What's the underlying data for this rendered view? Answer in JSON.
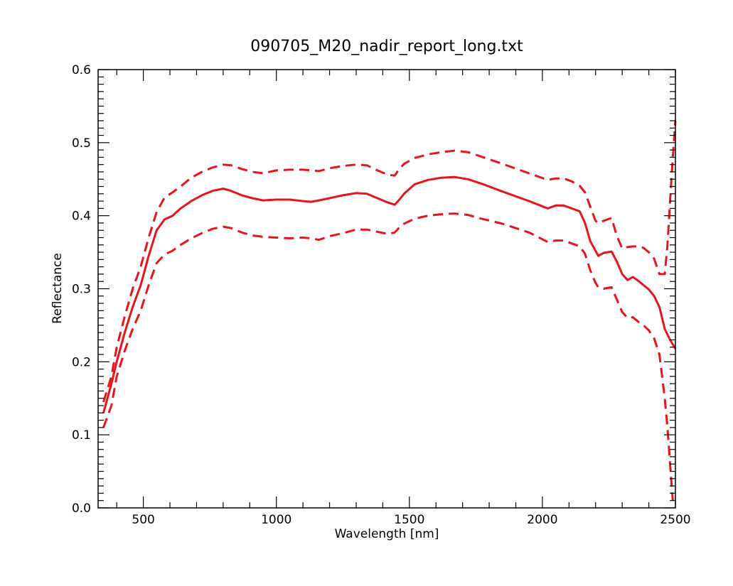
{
  "chart_data": {
    "type": "line",
    "title": "090705_M20_nadir_report_long.txt",
    "xlabel": "Wavelength [nm]",
    "ylabel": "Reflectance",
    "xlim": [
      330,
      2500
    ],
    "ylim": [
      0.0,
      0.6
    ],
    "x_ticks": [
      500,
      1000,
      1500,
      2000,
      2500
    ],
    "x_tick_labels": [
      "500",
      "1000",
      "1500",
      "2000",
      "2500"
    ],
    "y_ticks": [
      0.0,
      0.1,
      0.2,
      0.3,
      0.4,
      0.5,
      0.6
    ],
    "y_tick_labels": [
      "0.0",
      "0.1",
      "0.2",
      "0.3",
      "0.4",
      "0.5",
      "0.6"
    ],
    "grid": false,
    "colors": {
      "series": "#e8141c",
      "axes": "#000000"
    },
    "series": [
      {
        "style": "solid",
        "x": [
          350,
          380,
          400,
          430,
          460,
          490,
          520,
          550,
          580,
          610,
          640,
          680,
          720,
          760,
          800,
          830,
          870,
          910,
          950,
          1000,
          1050,
          1100,
          1130,
          1160,
          1200,
          1250,
          1300,
          1340,
          1380,
          1420,
          1445,
          1460,
          1480,
          1520,
          1570,
          1620,
          1670,
          1720,
          1770,
          1850,
          1950,
          2020,
          2050,
          2080,
          2110,
          2140,
          2160,
          2180,
          2200,
          2210,
          2230,
          2260,
          2280,
          2300,
          2320,
          2340,
          2360,
          2380,
          2400,
          2420,
          2440,
          2460,
          2480,
          2500
        ],
        "y": [
          0.13,
          0.17,
          0.2,
          0.24,
          0.275,
          0.305,
          0.345,
          0.38,
          0.395,
          0.4,
          0.41,
          0.42,
          0.428,
          0.434,
          0.437,
          0.434,
          0.428,
          0.424,
          0.421,
          0.422,
          0.422,
          0.42,
          0.419,
          0.421,
          0.424,
          0.428,
          0.431,
          0.43,
          0.424,
          0.418,
          0.415,
          0.421,
          0.43,
          0.443,
          0.449,
          0.452,
          0.453,
          0.45,
          0.444,
          0.433,
          0.42,
          0.41,
          0.414,
          0.414,
          0.41,
          0.406,
          0.39,
          0.365,
          0.352,
          0.345,
          0.349,
          0.351,
          0.337,
          0.32,
          0.312,
          0.316,
          0.311,
          0.305,
          0.299,
          0.29,
          0.275,
          0.245,
          0.23,
          0.218
        ]
      },
      {
        "style": "dashed",
        "x": [
          350,
          380,
          400,
          430,
          460,
          490,
          520,
          550,
          580,
          610,
          640,
          680,
          720,
          760,
          800,
          830,
          870,
          910,
          950,
          1000,
          1050,
          1100,
          1130,
          1160,
          1200,
          1250,
          1300,
          1340,
          1380,
          1420,
          1445,
          1460,
          1480,
          1520,
          1570,
          1620,
          1670,
          1720,
          1770,
          1850,
          1950,
          2020,
          2050,
          2080,
          2110,
          2140,
          2160,
          2180,
          2200,
          2210,
          2230,
          2260,
          2280,
          2300,
          2320,
          2340,
          2360,
          2380,
          2400,
          2420,
          2440,
          2460,
          2470,
          2480,
          2490,
          2500
        ],
        "y": [
          0.145,
          0.18,
          0.22,
          0.262,
          0.3,
          0.33,
          0.37,
          0.405,
          0.425,
          0.432,
          0.44,
          0.452,
          0.46,
          0.466,
          0.47,
          0.469,
          0.464,
          0.46,
          0.458,
          0.462,
          0.463,
          0.463,
          0.462,
          0.461,
          0.465,
          0.468,
          0.47,
          0.469,
          0.462,
          0.456,
          0.455,
          0.463,
          0.471,
          0.479,
          0.484,
          0.487,
          0.489,
          0.487,
          0.481,
          0.471,
          0.458,
          0.449,
          0.451,
          0.451,
          0.447,
          0.441,
          0.432,
          0.412,
          0.393,
          0.39,
          0.393,
          0.397,
          0.372,
          0.355,
          0.357,
          0.358,
          0.358,
          0.356,
          0.35,
          0.341,
          0.32,
          0.32,
          0.36,
          0.42,
          0.48,
          0.53
        ]
      },
      {
        "style": "dashed",
        "x": [
          350,
          380,
          400,
          430,
          460,
          490,
          520,
          550,
          580,
          610,
          640,
          680,
          720,
          760,
          800,
          830,
          870,
          910,
          950,
          1000,
          1050,
          1100,
          1130,
          1160,
          1200,
          1250,
          1300,
          1340,
          1380,
          1420,
          1445,
          1460,
          1480,
          1520,
          1570,
          1620,
          1670,
          1720,
          1770,
          1850,
          1950,
          2020,
          2050,
          2080,
          2110,
          2140,
          2160,
          2180,
          2200,
          2210,
          2230,
          2260,
          2280,
          2300,
          2320,
          2340,
          2360,
          2380,
          2400,
          2420,
          2440,
          2450,
          2460,
          2470,
          2480,
          2490
        ],
        "y": [
          0.11,
          0.14,
          0.18,
          0.215,
          0.245,
          0.27,
          0.305,
          0.335,
          0.347,
          0.352,
          0.36,
          0.369,
          0.376,
          0.382,
          0.385,
          0.383,
          0.377,
          0.373,
          0.371,
          0.37,
          0.369,
          0.37,
          0.369,
          0.367,
          0.372,
          0.376,
          0.381,
          0.381,
          0.378,
          0.375,
          0.377,
          0.383,
          0.389,
          0.396,
          0.4,
          0.402,
          0.403,
          0.401,
          0.396,
          0.389,
          0.377,
          0.364,
          0.366,
          0.366,
          0.362,
          0.358,
          0.348,
          0.325,
          0.308,
          0.302,
          0.3,
          0.302,
          0.285,
          0.268,
          0.26,
          0.261,
          0.255,
          0.25,
          0.243,
          0.232,
          0.21,
          0.18,
          0.15,
          0.11,
          0.06,
          0.01
        ]
      }
    ]
  }
}
